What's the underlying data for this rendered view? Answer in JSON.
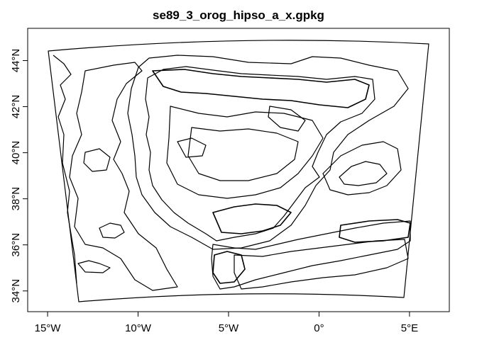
{
  "title": "se89_3_orog_hipso_a_x.gpkg",
  "chart_data": {
    "type": "map",
    "title": "se89_3_orog_hipso_a_x.gpkg",
    "x_ticks": [
      {
        "value": -15,
        "label": "15°W"
      },
      {
        "value": -10,
        "label": "10°W"
      },
      {
        "value": -5,
        "label": "5°W"
      },
      {
        "value": 0,
        "label": "0°"
      },
      {
        "value": 5,
        "label": "5°E"
      }
    ],
    "y_ticks": [
      {
        "value": 34,
        "label": "34°N"
      },
      {
        "value": 36,
        "label": "36°N"
      },
      {
        "value": 38,
        "label": "38°N"
      },
      {
        "value": 40,
        "label": "40°N"
      },
      {
        "value": 42,
        "label": "42°N"
      },
      {
        "value": 44,
        "label": "44°N"
      }
    ],
    "xlim": [
      -16.1,
      7.2
    ],
    "ylim": [
      33.1,
      45.4
    ],
    "features": "orography / hypsometry contour lines of the Iberian Peninsula and northern Africa"
  }
}
